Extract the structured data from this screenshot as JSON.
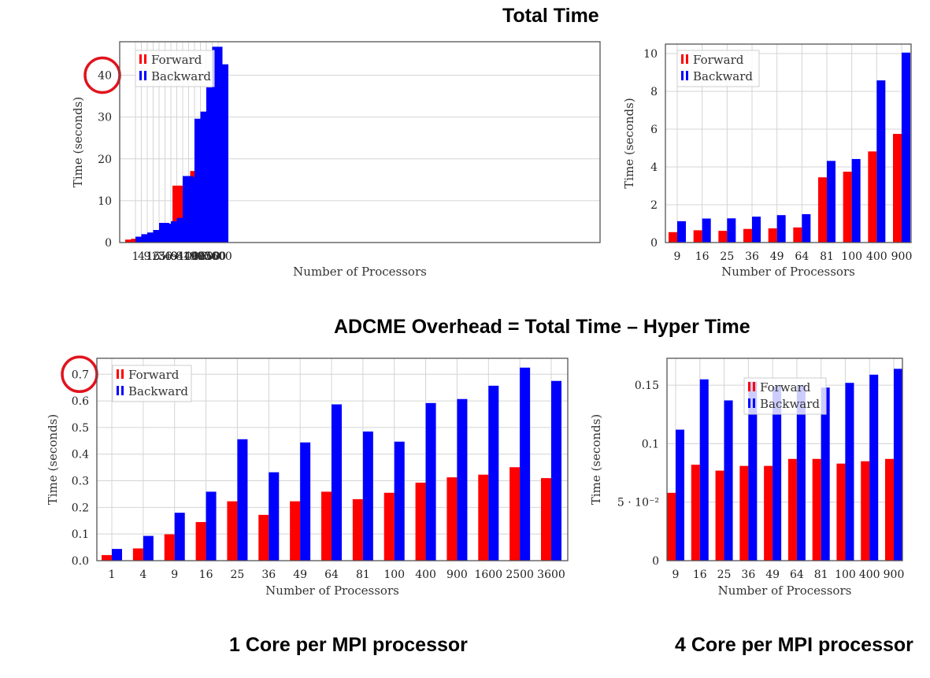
{
  "headings": {
    "total_time": "Total Time",
    "overhead": "ADCME Overhead = Total Time – Hyper Time",
    "one_core": "1 Core per MPI processor",
    "four_core": "4 Core per MPI processor"
  },
  "colors": {
    "forward": "#ff0000",
    "backward": "#0000ff",
    "grid": "#d4d4d4",
    "axis": "#555555",
    "highlight_circle": "#e0141e"
  },
  "chart_data": [
    {
      "type": "bar",
      "categories": [
        "1",
        "4",
        "9",
        "16",
        "25",
        "36",
        "49",
        "64",
        "81",
        "100",
        "400",
        "900",
        "1600",
        "2500",
        "3600"
      ],
      "series": [
        {
          "name": "Forward",
          "values": [
            0.7,
            0.9,
            1.2,
            1.5,
            2.3,
            2.2,
            2.6,
            3.0,
            13.6,
            13.5,
            15.8,
            17.1,
            19.3,
            20.2,
            21.2
          ]
        },
        {
          "name": "Backward",
          "values": [
            1.4,
            2.0,
            2.4,
            3.0,
            4.7,
            4.5,
            5.1,
            5.9,
            15.9,
            15.7,
            29.6,
            31.3,
            37.1,
            46.8,
            42.6
          ]
        }
      ],
      "xlabel": "Number of Processors",
      "ylabel": "Time (seconds)",
      "yticks": [
        0,
        10,
        20,
        30,
        40
      ],
      "ytick_labels": [
        "0",
        "10",
        "20",
        "30",
        "40"
      ],
      "ylim": [
        0,
        48
      ],
      "grid": true,
      "legend": "top-left",
      "highlight_tick": "40"
    },
    {
      "type": "bar",
      "categories": [
        "9",
        "16",
        "25",
        "36",
        "49",
        "64",
        "81",
        "100",
        "400",
        "900"
      ],
      "series": [
        {
          "name": "Forward",
          "values": [
            0.55,
            0.65,
            0.62,
            0.72,
            0.75,
            0.8,
            3.45,
            3.75,
            4.82,
            5.75
          ]
        },
        {
          "name": "Backward",
          "values": [
            1.13,
            1.27,
            1.28,
            1.37,
            1.45,
            1.5,
            4.32,
            4.42,
            8.58,
            10.05
          ]
        }
      ],
      "xlabel": "Number of Processors",
      "ylabel": "Time (seconds)",
      "yticks": [
        0,
        2,
        4,
        6,
        8,
        10
      ],
      "ytick_labels": [
        "0",
        "2",
        "4",
        "6",
        "8",
        "10"
      ],
      "ylim": [
        0,
        10.5
      ],
      "grid": true,
      "legend": "top-left"
    },
    {
      "type": "bar",
      "categories": [
        "1",
        "4",
        "9",
        "16",
        "25",
        "36",
        "49",
        "64",
        "81",
        "100",
        "400",
        "900",
        "1600",
        "2500",
        "3600"
      ],
      "series": [
        {
          "name": "Forward",
          "values": [
            0.021,
            0.046,
            0.099,
            0.145,
            0.223,
            0.172,
            0.223,
            0.259,
            0.231,
            0.255,
            0.293,
            0.313,
            0.323,
            0.351,
            0.31
          ]
        },
        {
          "name": "Backward",
          "values": [
            0.044,
            0.093,
            0.18,
            0.259,
            0.456,
            0.332,
            0.444,
            0.587,
            0.485,
            0.447,
            0.592,
            0.607,
            0.657,
            0.725,
            0.675
          ]
        }
      ],
      "xlabel": "Number of Processors",
      "ylabel": "Time (seconds)",
      "yticks": [
        0,
        0.1,
        0.2,
        0.3,
        0.4,
        0.5,
        0.6,
        0.7
      ],
      "ytick_labels": [
        "0.0",
        "0.1",
        "0.2",
        "0.3",
        "0.4",
        "0.5",
        "0.6",
        "0.7"
      ],
      "ylim": [
        0,
        0.76
      ],
      "grid": true,
      "legend": "top-left",
      "highlight_tick": "0.7"
    },
    {
      "type": "bar",
      "categories": [
        "9",
        "16",
        "25",
        "36",
        "49",
        "64",
        "81",
        "100",
        "400",
        "900"
      ],
      "series": [
        {
          "name": "Forward",
          "values": [
            0.058,
            0.082,
            0.077,
            0.081,
            0.081,
            0.087,
            0.087,
            0.083,
            0.085,
            0.087
          ]
        },
        {
          "name": "Backward",
          "values": [
            0.112,
            0.155,
            0.137,
            0.153,
            0.149,
            0.15,
            0.148,
            0.152,
            0.159,
            0.164
          ]
        }
      ],
      "xlabel": "Number of Processors",
      "ylabel": "Time (seconds)",
      "yticks": [
        0,
        0.05,
        0.1,
        0.15
      ],
      "ytick_labels": [
        "0",
        "5 · 10⁻²",
        "0.1",
        "0.15"
      ],
      "ylim": [
        0,
        0.173
      ],
      "grid": true,
      "legend": "top-center"
    }
  ]
}
